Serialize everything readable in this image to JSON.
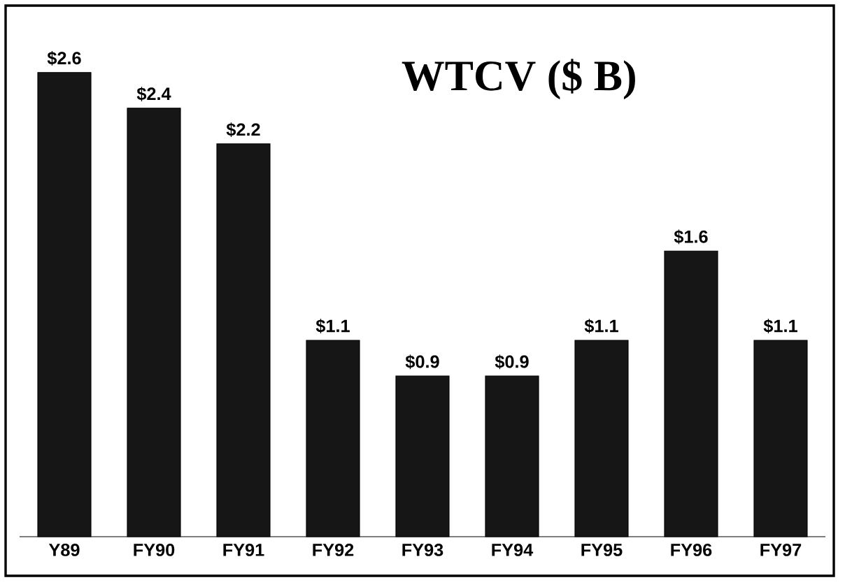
{
  "chart_data": {
    "type": "bar",
    "title": "WTCV ($ B)",
    "categories": [
      "Y89",
      "FY90",
      "FY91",
      "FY92",
      "FY93",
      "FY94",
      "FY95",
      "FY96",
      "FY97"
    ],
    "values": [
      2.6,
      2.4,
      2.2,
      1.1,
      0.9,
      0.9,
      1.1,
      1.6,
      1.1
    ],
    "value_labels": [
      "$2.6",
      "$2.4",
      "$2.2",
      "$1.1",
      "$0.9",
      "$0.9",
      "$1.1",
      "$1.6",
      "$1.1"
    ],
    "color": "#161616"
  }
}
